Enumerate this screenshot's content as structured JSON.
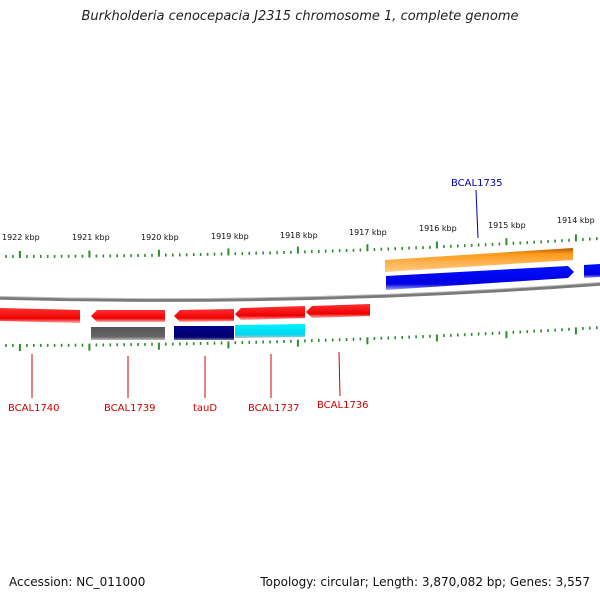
{
  "title": "Burkholderia cenocepacia J2315 chromosome 1, complete genome",
  "accession": "Accession: NC_011000",
  "summary": "Topology: circular; Length: 3,870,082 bp; Genes: 3,557",
  "colors": {
    "backbone": "#808080",
    "tick": "#2e8b2e",
    "label_red": "#d40000",
    "label_blue": "#0000b0",
    "gene_red": "#ff0000",
    "gene_orange": "#ff8c00",
    "gene_blue": "#0000ff",
    "gene_navy": "#000080",
    "gene_cyan": "#00e5ff",
    "gene_gray": "#606060"
  },
  "kbp_ticks": [
    "1922 kbp",
    "1921 kbp",
    "1920 kbp",
    "1919 kbp",
    "1918 kbp",
    "1917 kbp",
    "1916 kbp",
    "1915 kbp",
    "1914 kbp"
  ],
  "genes_top": [
    {
      "name": "BCAL1735",
      "color": "gene_blue",
      "label_color": "label_blue"
    },
    {
      "name": "",
      "color": "gene_orange"
    },
    {
      "name": "",
      "color": "gene_blue"
    }
  ],
  "genes_bottom": [
    {
      "name": "BCAL1740",
      "color": "gene_red"
    },
    {
      "name": "BCAL1739",
      "color": "gene_red"
    },
    {
      "name": "",
      "color": "gene_gray"
    },
    {
      "name": "tauD",
      "color": "gene_red"
    },
    {
      "name": "",
      "color": "gene_navy"
    },
    {
      "name": "BCAL1737",
      "color": "gene_red"
    },
    {
      "name": "",
      "color": "gene_cyan"
    },
    {
      "name": "BCAL1736",
      "color": "gene_red"
    }
  ]
}
